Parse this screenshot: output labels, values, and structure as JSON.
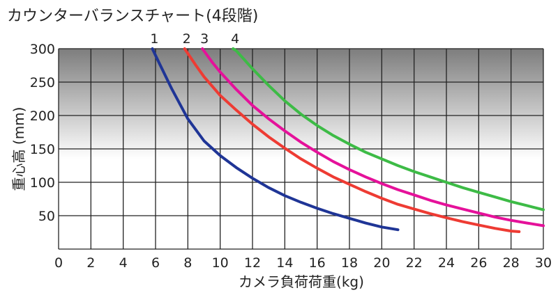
{
  "chart_data": {
    "type": "line",
    "title": "カウンターバランスチャート(4段階)",
    "xlabel": "カメラ負荷荷重(kg)",
    "ylabel": "重心高 (mm)",
    "xlim": [
      0,
      30
    ],
    "ylim": [
      0,
      300
    ],
    "x_ticks": [
      "0",
      "2",
      "4",
      "6",
      "8",
      "10",
      "12",
      "14",
      "16",
      "18",
      "20",
      "22",
      "24",
      "26",
      "28",
      "30"
    ],
    "y_ticks": [
      "50",
      "100",
      "150",
      "200",
      "250",
      "300"
    ],
    "grid": true,
    "background": "gray gradient (dark at top, white at bottom)",
    "series": [
      {
        "name": "1",
        "color": "#1f3596",
        "points": [
          [
            5.8,
            300
          ],
          [
            6.2,
            280
          ],
          [
            7,
            240
          ],
          [
            8,
            195
          ],
          [
            9,
            162
          ],
          [
            10,
            140
          ],
          [
            11,
            122
          ],
          [
            12,
            106
          ],
          [
            13,
            92
          ],
          [
            14,
            80
          ],
          [
            15,
            70
          ],
          [
            16,
            61
          ],
          [
            17,
            53
          ],
          [
            18,
            46
          ],
          [
            19,
            39
          ],
          [
            20,
            33
          ],
          [
            21,
            29
          ]
        ]
      },
      {
        "name": "2",
        "color": "#ee3b33",
        "points": [
          [
            7.8,
            300
          ],
          [
            8.5,
            275
          ],
          [
            9,
            258
          ],
          [
            10,
            230
          ],
          [
            11,
            208
          ],
          [
            12,
            187
          ],
          [
            13,
            168
          ],
          [
            14,
            151
          ],
          [
            15,
            135
          ],
          [
            16,
            121
          ],
          [
            17,
            108
          ],
          [
            18,
            97
          ],
          [
            19,
            86
          ],
          [
            20,
            76
          ],
          [
            21,
            67
          ],
          [
            22,
            60
          ],
          [
            23,
            53
          ],
          [
            24,
            47
          ],
          [
            25,
            41
          ],
          [
            26,
            36
          ],
          [
            27,
            31
          ],
          [
            28,
            27
          ],
          [
            28.5,
            26
          ]
        ]
      },
      {
        "name": "3",
        "color": "#e5119a",
        "points": [
          [
            8.9,
            300
          ],
          [
            9.5,
            280
          ],
          [
            10,
            265
          ],
          [
            11,
            239
          ],
          [
            12,
            215
          ],
          [
            13,
            195
          ],
          [
            14,
            177
          ],
          [
            15,
            160
          ],
          [
            16,
            145
          ],
          [
            17,
            131
          ],
          [
            18,
            119
          ],
          [
            19,
            108
          ],
          [
            20,
            98
          ],
          [
            21,
            89
          ],
          [
            22,
            81
          ],
          [
            23,
            73
          ],
          [
            24,
            66
          ],
          [
            25,
            60
          ],
          [
            26,
            54
          ],
          [
            27,
            48
          ],
          [
            28,
            43
          ],
          [
            29,
            39
          ],
          [
            30,
            35
          ]
        ]
      },
      {
        "name": "4",
        "color": "#3dbb46",
        "points": [
          [
            10.8,
            300
          ],
          [
            11,
            297
          ],
          [
            12,
            270
          ],
          [
            13,
            245
          ],
          [
            14,
            222
          ],
          [
            15,
            202
          ],
          [
            16,
            185
          ],
          [
            17,
            170
          ],
          [
            18,
            157
          ],
          [
            19,
            145
          ],
          [
            20,
            135
          ],
          [
            21,
            125
          ],
          [
            22,
            116
          ],
          [
            23,
            108
          ],
          [
            24,
            100
          ],
          [
            25,
            92
          ],
          [
            26,
            85
          ],
          [
            27,
            78
          ],
          [
            28,
            71
          ],
          [
            29,
            65
          ],
          [
            30,
            59
          ]
        ]
      }
    ]
  }
}
